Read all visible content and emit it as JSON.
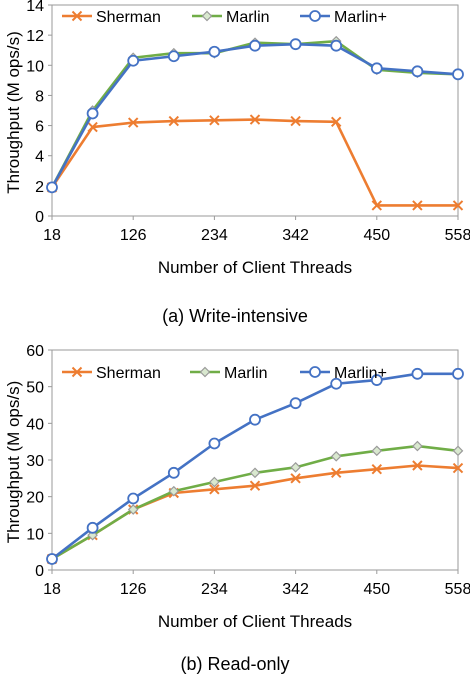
{
  "chart_data": [
    {
      "type": "line",
      "caption": "(a) Write-intensive",
      "xlabel": "Number of Client Threads",
      "ylabel": "Throughput (M ops/s)",
      "x": [
        18,
        72,
        126,
        180,
        234,
        288,
        342,
        396,
        450,
        504,
        558
      ],
      "x_tick_labels": [
        "18",
        "126",
        "234",
        "342",
        "450",
        "558"
      ],
      "x_ticks": [
        18,
        126,
        234,
        342,
        450,
        558
      ],
      "ylim": [
        0,
        14
      ],
      "y_ticks": [
        0,
        2,
        4,
        6,
        8,
        10,
        12,
        14
      ],
      "legend_position": "top",
      "series": [
        {
          "name": "Sherman",
          "color": "#ED7D31",
          "marker": "x",
          "values": [
            1.9,
            5.9,
            6.2,
            6.3,
            6.35,
            6.4,
            6.3,
            6.25,
            0.7,
            0.7,
            0.7
          ]
        },
        {
          "name": "Marlin",
          "color": "#70AD47",
          "marker": "diamond",
          "values": [
            1.9,
            7.0,
            10.5,
            10.8,
            10.8,
            11.5,
            11.4,
            11.6,
            9.7,
            9.5,
            9.4
          ]
        },
        {
          "name": "Marlin+",
          "color": "#4472C4",
          "marker": "circle",
          "values": [
            1.9,
            6.8,
            10.3,
            10.6,
            10.9,
            11.3,
            11.4,
            11.3,
            9.8,
            9.6,
            9.4
          ]
        }
      ]
    },
    {
      "type": "line",
      "caption": "(b) Read-only",
      "xlabel": "Number of Client Threads",
      "ylabel": "Throughput (M ops/s)",
      "x": [
        18,
        72,
        126,
        180,
        234,
        288,
        342,
        396,
        450,
        504,
        558
      ],
      "x_tick_labels": [
        "18",
        "126",
        "234",
        "342",
        "450",
        "558"
      ],
      "x_ticks": [
        18,
        126,
        234,
        342,
        450,
        558
      ],
      "ylim": [
        0,
        60
      ],
      "y_ticks": [
        0,
        10,
        20,
        30,
        40,
        50,
        60
      ],
      "legend_position": "top",
      "series": [
        {
          "name": "Sherman",
          "color": "#ED7D31",
          "marker": "x",
          "values": [
            3,
            9.5,
            16.5,
            21,
            22,
            23,
            25,
            26.5,
            27.5,
            28.5,
            27.8
          ]
        },
        {
          "name": "Marlin",
          "color": "#70AD47",
          "marker": "diamond",
          "values": [
            3,
            9.5,
            16.5,
            21.5,
            24,
            26.5,
            28,
            31,
            32.5,
            33.8,
            32.5
          ]
        },
        {
          "name": "Marlin+",
          "color": "#4472C4",
          "marker": "circle",
          "values": [
            3,
            11.5,
            19.5,
            26.5,
            34.5,
            41,
            45.5,
            50.8,
            51.8,
            53.5,
            53.5
          ]
        }
      ]
    }
  ]
}
